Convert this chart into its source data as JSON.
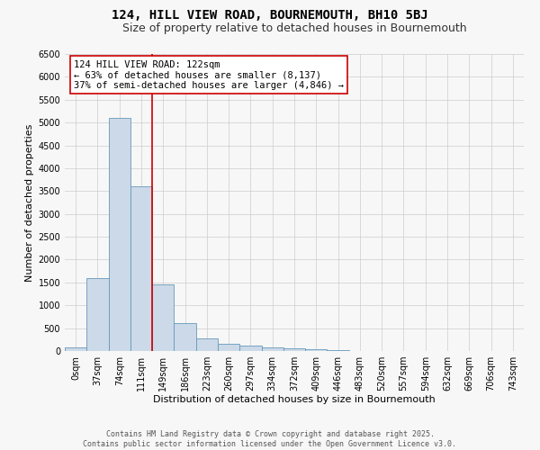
{
  "title": "124, HILL VIEW ROAD, BOURNEMOUTH, BH10 5BJ",
  "subtitle": "Size of property relative to detached houses in Bournemouth",
  "xlabel": "Distribution of detached houses by size in Bournemouth",
  "ylabel": "Number of detached properties",
  "categories": [
    "0sqm",
    "37sqm",
    "74sqm",
    "111sqm",
    "149sqm",
    "186sqm",
    "223sqm",
    "260sqm",
    "297sqm",
    "334sqm",
    "372sqm",
    "409sqm",
    "446sqm",
    "483sqm",
    "520sqm",
    "557sqm",
    "594sqm",
    "632sqm",
    "669sqm",
    "706sqm",
    "743sqm"
  ],
  "values": [
    75,
    1600,
    5100,
    3600,
    1450,
    620,
    280,
    160,
    120,
    80,
    50,
    30,
    15,
    8,
    3,
    1,
    0,
    0,
    0,
    0,
    0
  ],
  "bar_color": "#ccd9e8",
  "bar_edge_color": "#6699bb",
  "vline_color": "#cc0000",
  "vline_x_idx": 3,
  "annotation_text": "124 HILL VIEW ROAD: 122sqm\n← 63% of detached houses are smaller (8,137)\n37% of semi-detached houses are larger (4,846) →",
  "annotation_box_color": "#ffffff",
  "annotation_box_edge_color": "#cc0000",
  "ylim": [
    0,
    6500
  ],
  "yticks": [
    0,
    500,
    1000,
    1500,
    2000,
    2500,
    3000,
    3500,
    4000,
    4500,
    5000,
    5500,
    6000,
    6500
  ],
  "footer_text": "Contains HM Land Registry data © Crown copyright and database right 2025.\nContains public sector information licensed under the Open Government Licence v3.0.",
  "bg_color": "#f7f7f7",
  "grid_color": "#cccccc",
  "title_fontsize": 10,
  "subtitle_fontsize": 9,
  "axis_label_fontsize": 8,
  "tick_fontsize": 7,
  "footer_fontsize": 6,
  "annotation_fontsize": 7.5
}
